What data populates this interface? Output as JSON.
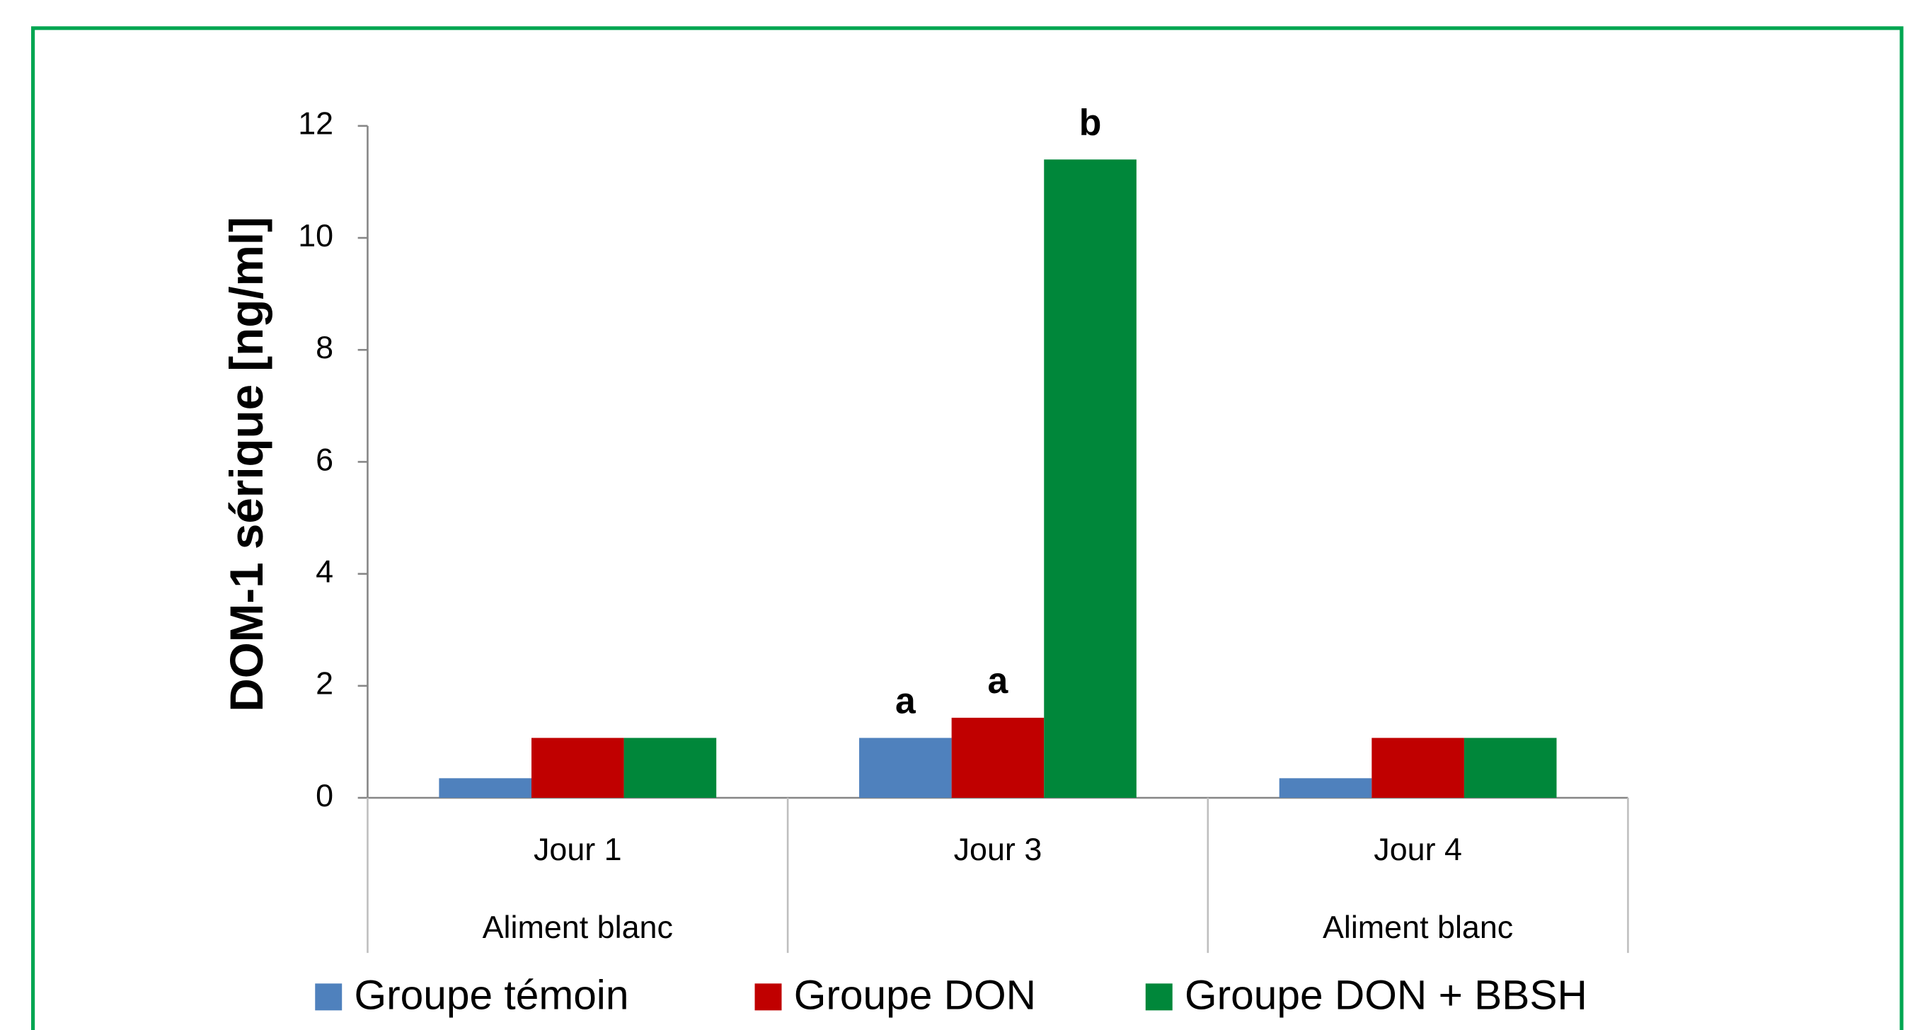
{
  "chart_data": {
    "type": "bar",
    "ylabel": "DOM-1 sérique [ng/ml]",
    "categories": [
      "Jour 1",
      "Jour 3",
      "Jour 4"
    ],
    "category_sublabels": [
      "Aliment blanc",
      null,
      "Aliment blanc"
    ],
    "series": [
      {
        "name": "Groupe témoin",
        "color": "#4f81bd",
        "values": [
          0.35,
          1.07,
          0.35
        ]
      },
      {
        "name": "Groupe DON",
        "color": "#c00000",
        "values": [
          1.07,
          1.43,
          1.07
        ]
      },
      {
        "name": "Groupe DON + BBSH",
        "color": "#00873a",
        "values": [
          1.07,
          11.4,
          1.07
        ]
      }
    ],
    "annotations": [
      {
        "text": "a",
        "category": 1,
        "series": 0
      },
      {
        "text": "a",
        "category": 1,
        "series": 1
      },
      {
        "text": "b",
        "category": 1,
        "series": 2
      }
    ],
    "ylim": [
      0,
      12
    ],
    "yticks": [
      0,
      2,
      4,
      6,
      8,
      10,
      12
    ],
    "grid": false,
    "legend": "bottom"
  }
}
